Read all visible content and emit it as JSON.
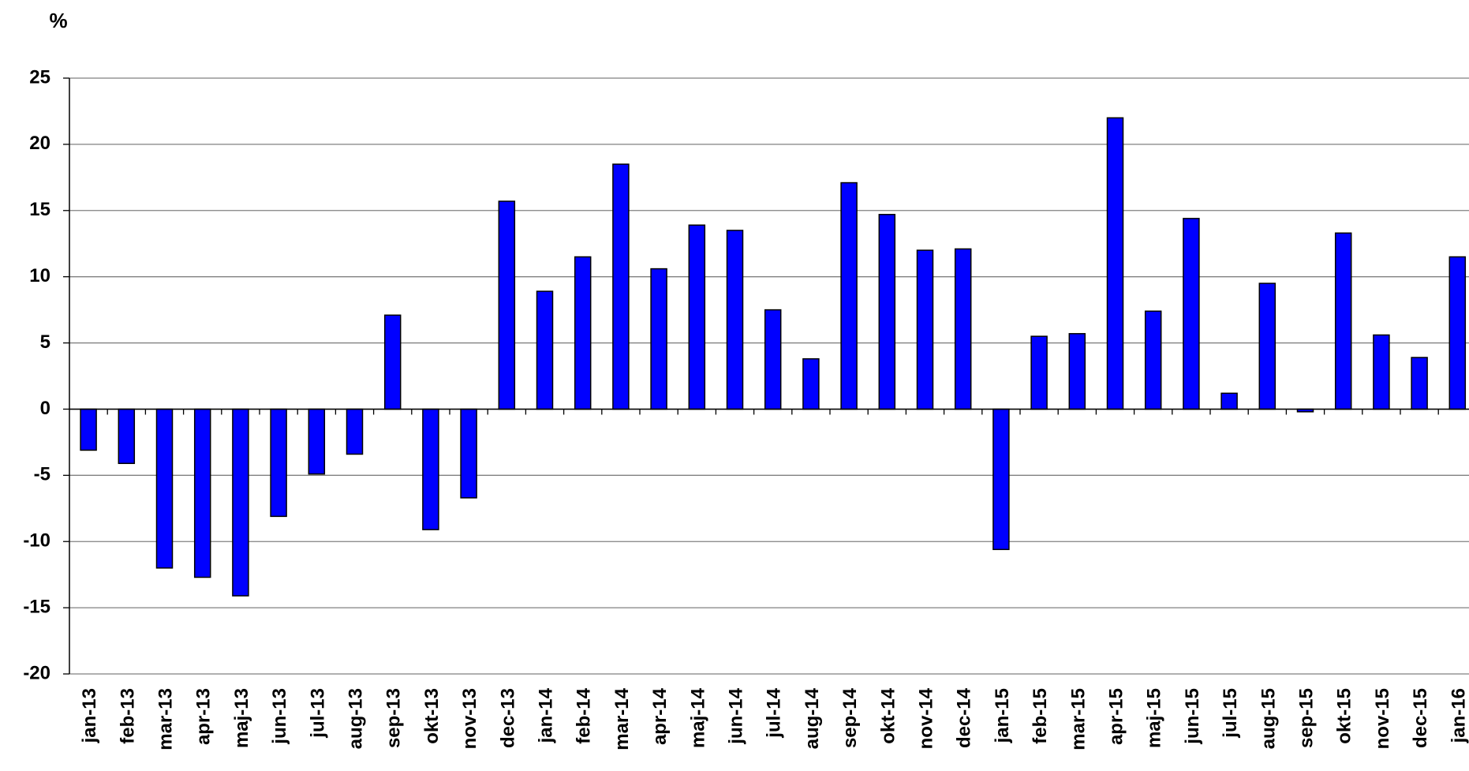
{
  "chart_data": {
    "type": "bar",
    "y_label": "%",
    "categories": [
      "jan-13",
      "feb-13",
      "mar-13",
      "apr-13",
      "maj-13",
      "jun-13",
      "jul-13",
      "aug-13",
      "sep-13",
      "okt-13",
      "nov-13",
      "dec-13",
      "jan-14",
      "feb-14",
      "mar-14",
      "apr-14",
      "maj-14",
      "jun-14",
      "jul-14",
      "aug-14",
      "sep-14",
      "okt-14",
      "nov-14",
      "dec-14",
      "jan-15",
      "feb-15",
      "mar-15",
      "apr-15",
      "maj-15",
      "jun-15",
      "jul-15",
      "aug-15",
      "sep-15",
      "okt-15",
      "nov-15",
      "dec-15",
      "jan-16"
    ],
    "values": [
      -3.1,
      -4.1,
      -12.0,
      -12.7,
      -14.1,
      -8.1,
      -4.9,
      -3.4,
      7.1,
      -9.1,
      -6.7,
      15.7,
      8.9,
      11.5,
      18.5,
      10.6,
      13.9,
      13.5,
      7.5,
      3.8,
      17.1,
      14.7,
      12.0,
      12.1,
      -10.6,
      5.5,
      5.7,
      22.0,
      7.4,
      14.4,
      1.2,
      9.5,
      -0.2,
      13.3,
      5.6,
      3.9,
      11.5
    ],
    "color": "#0000ff",
    "ylim": [
      -20,
      25
    ],
    "yticks": [
      -20,
      -15,
      -10,
      -5,
      0,
      5,
      10,
      15,
      20,
      25
    ],
    "grid": true
  }
}
